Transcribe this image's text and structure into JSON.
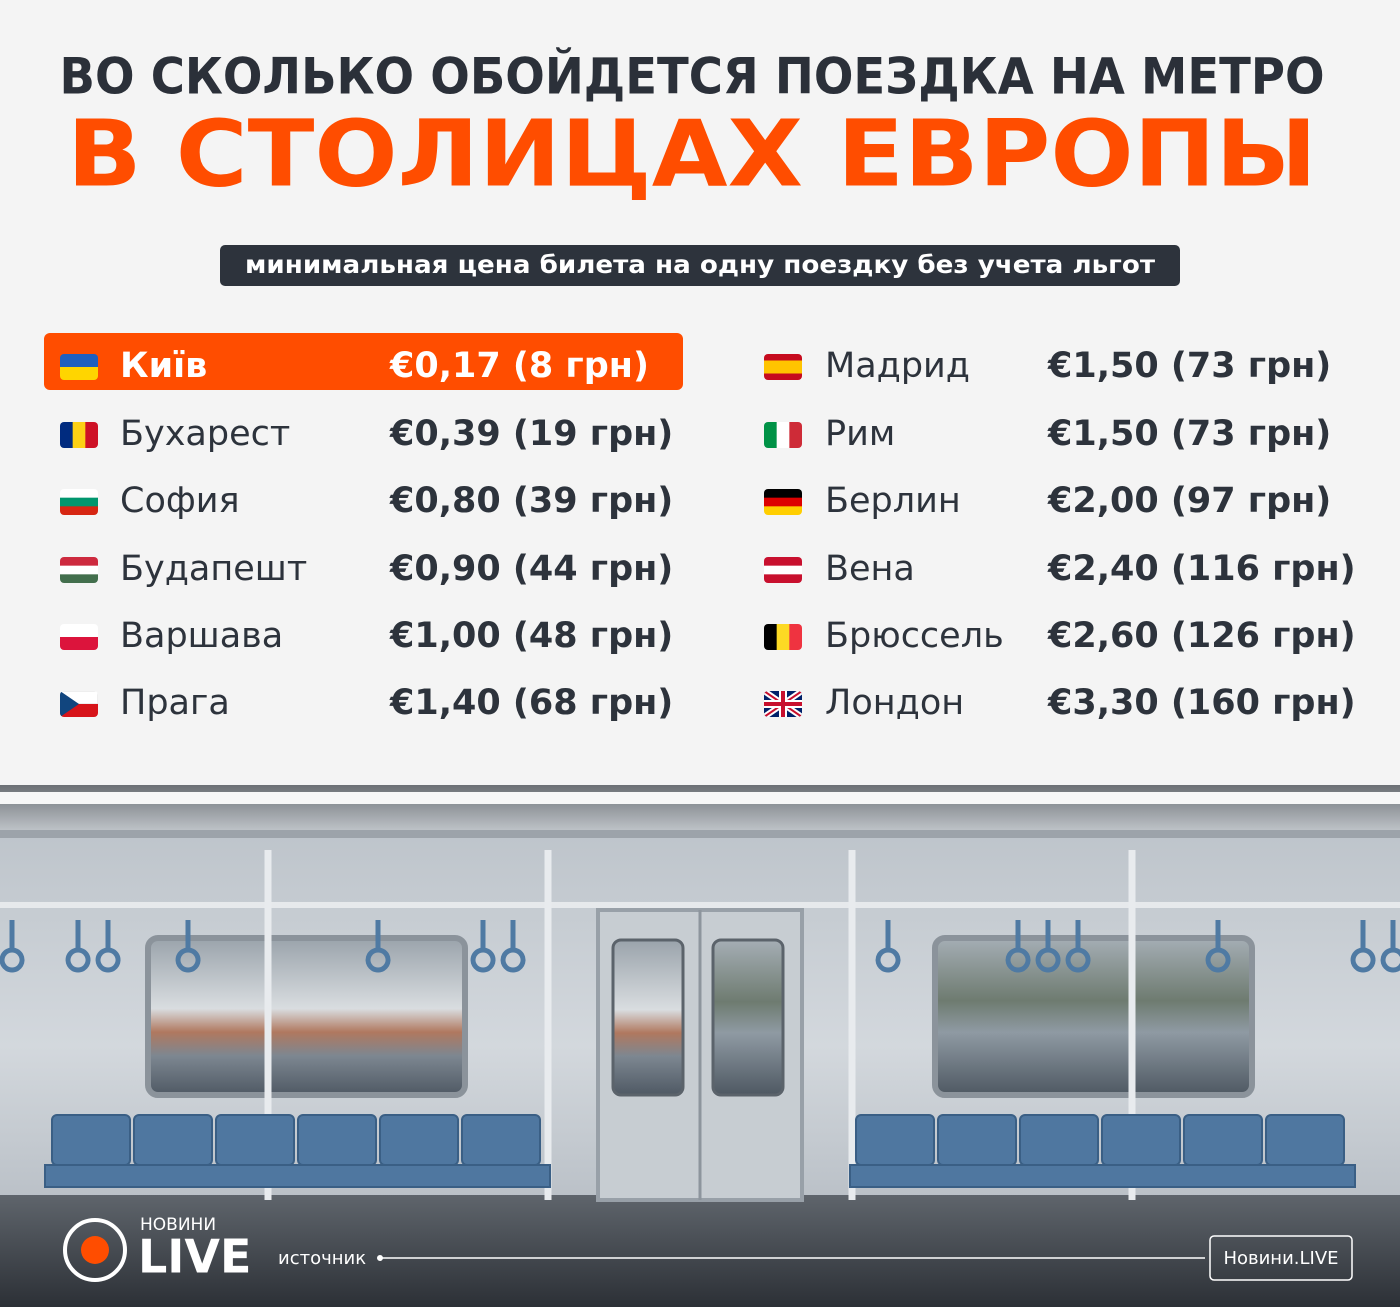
{
  "header": {
    "title": "ВО СКОЛЬКО ОБОЙДЕТСЯ ПОЕЗДКА НА МЕТРО",
    "highlight": "В СТОЛИЦАХ ЕВРОПЫ",
    "subtitle": "минимальная цена билета на одну поездку без учета льгот"
  },
  "cities": [
    {
      "name": "Київ",
      "price": "€0,17 (8 грн)"
    },
    {
      "name": "Бухарест",
      "price": "€0,39 (19 грн)"
    },
    {
      "name": "София",
      "price": "€0,80 (39 грн)"
    },
    {
      "name": "Будапешт",
      "price": "€0,90 (44 грн)"
    },
    {
      "name": "Варшава",
      "price": "€1,00 (48 грн)"
    },
    {
      "name": "Прага",
      "price": "€1,40 (68 грн)"
    },
    {
      "name": "Мадрид",
      "price": "€1,50 (73 грн)"
    },
    {
      "name": "Рим",
      "price": "€1,50 (73 грн)"
    },
    {
      "name": "Берлин",
      "price": "€2,00 (97 грн)"
    },
    {
      "name": "Вена",
      "price": "€2,40 (116 грн)"
    },
    {
      "name": "Брюссель",
      "price": "€2,60 (126 грн)"
    },
    {
      "name": "Лондон",
      "price": "€3,30 (160 грн)"
    }
  ],
  "footer": {
    "brand_small": "НОВИНИ",
    "brand": "LIVE",
    "source_label": "источник",
    "source": "Новини.LIVE"
  }
}
